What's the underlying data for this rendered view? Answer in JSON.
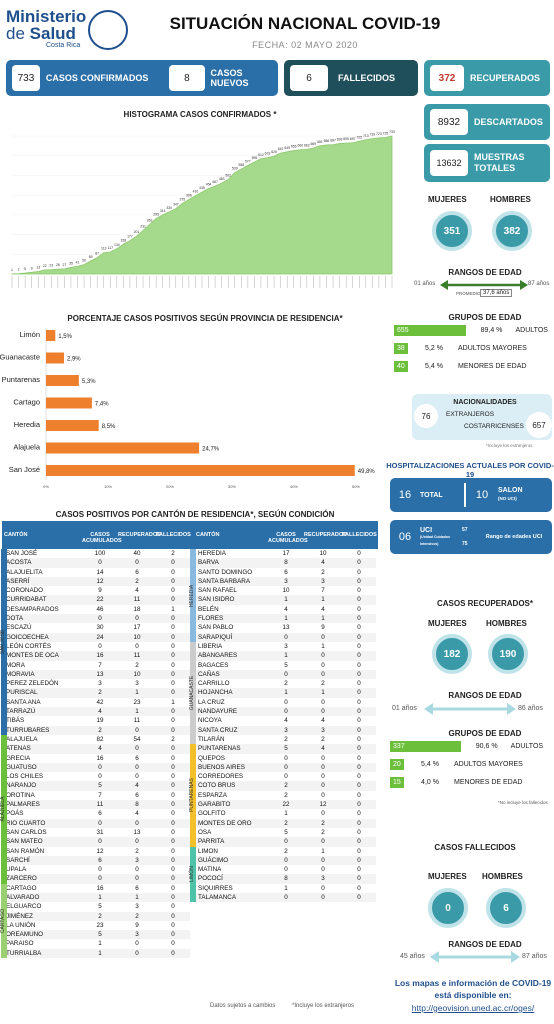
{
  "header": {
    "brand_l1": "Ministerio",
    "brand_de": "de",
    "brand_l2": "Salud",
    "brand_l3": "Costa Rica",
    "title": "SITUACIÓN NACIONAL COVID-19",
    "fecha": "FECHA: 02 MAYO 2020"
  },
  "kpis": {
    "confirmados": {
      "value": "733",
      "label": "CASOS CONFIRMADOS"
    },
    "nuevos": {
      "value": "8",
      "label": "CASOS NUEVOS"
    },
    "fallecidos": {
      "value": "6",
      "label": "FALLECIDOS"
    },
    "recuperados": {
      "value": "372",
      "label": "RECUPERADOS"
    },
    "descartados": {
      "value": "8932",
      "label": "DESCARTADOS"
    },
    "muestras": {
      "value": "13632",
      "label1": "MUESTRAS",
      "label2": "TOTALES"
    }
  },
  "hist_title": "HISTOGRAMA CASOS CONFIRMADOS *",
  "prov_title": "PORCENTAJE CASOS POSITIVOS SEGÚN PROVINCIA DE RESIDENCIA*",
  "canton_title": "CASOS POSITIVOS POR CANTÓN DE RESIDENCIA*, SEGÚN CONDICIÓN",
  "chart_data": [
    {
      "type": "area",
      "title": "HISTOGRAMA CASOS CONFIRMADOS *",
      "values": [
        1,
        2,
        5,
        9,
        13,
        22,
        23,
        26,
        27,
        35,
        41,
        50,
        69,
        87,
        113,
        117,
        134,
        158,
        177,
        201,
        231,
        263,
        295,
        314,
        330,
        347,
        375,
        396,
        416,
        435,
        454,
        467,
        483,
        502,
        539,
        558,
        577,
        595,
        612,
        618,
        626,
        642,
        649,
        655,
        660,
        662,
        669,
        681,
        686,
        687,
        693,
        695,
        697,
        705,
        713,
        719,
        723,
        725,
        733
      ],
      "labels": [
        1,
        2,
        5,
        9,
        13,
        22,
        23,
        26,
        27,
        35,
        41,
        50,
        69,
        87,
        113,
        117,
        134,
        158,
        177,
        201,
        231,
        263,
        295,
        314,
        330,
        347,
        375,
        396,
        416,
        435,
        454,
        467,
        483,
        502,
        539,
        558,
        577,
        595,
        612,
        618,
        626,
        642,
        649,
        655,
        660,
        662,
        669,
        681,
        686,
        687,
        693,
        695,
        697,
        705,
        713,
        719,
        723,
        725,
        733
      ],
      "ylim": [
        0,
        733
      ]
    },
    {
      "type": "bar",
      "title": "PORCENTAJE CASOS POSITIVOS SEGÚN PROVINCIA DE RESIDENCIA*",
      "categories": [
        "Limón",
        "Guanacaste",
        "Puntarenas",
        "Cartago",
        "Heredia",
        "Alajuela",
        "San José"
      ],
      "values": [
        1.5,
        2.9,
        5.3,
        7.4,
        8.5,
        24.7,
        49.8
      ],
      "value_labels": [
        "1,5%",
        "2,9%",
        "5,3%",
        "7,4%",
        "8,5%",
        "24,7%",
        "49,8%"
      ],
      "ticks": [
        "0%",
        "10%",
        "20%",
        "30%",
        "40%",
        "50%"
      ],
      "xlim": [
        0,
        50
      ]
    }
  ],
  "table": {
    "headers": [
      "CANTÓN",
      "CASOS ACUMULADOS",
      "RECUPERADOS",
      "FALLECIDOS"
    ],
    "left": [
      [
        "SAN JOSÉ",
        "100",
        "40",
        "2"
      ],
      [
        "ACOSTA",
        "0",
        "0",
        "0"
      ],
      [
        "ALAJUELITA",
        "14",
        "6",
        "0"
      ],
      [
        "ASERRÍ",
        "12",
        "2",
        "0"
      ],
      [
        "CORONADO",
        "9",
        "4",
        "0"
      ],
      [
        "CURRIDABAT",
        "22",
        "11",
        "0"
      ],
      [
        "DESAMPARADOS",
        "46",
        "18",
        "1"
      ],
      [
        "DOTA",
        "0",
        "0",
        "0"
      ],
      [
        "ESCAZÚ",
        "30",
        "17",
        "0"
      ],
      [
        "GOICOECHEA",
        "24",
        "10",
        "0"
      ],
      [
        "LEÓN CORTÉS",
        "0",
        "0",
        "0"
      ],
      [
        "MONTES DE OCA",
        "16",
        "11",
        "0"
      ],
      [
        "MORA",
        "7",
        "2",
        "0"
      ],
      [
        "MORAVIA",
        "13",
        "10",
        "0"
      ],
      [
        "PEREZ ZELEDÓN",
        "3",
        "3",
        "0"
      ],
      [
        "PURISCAL",
        "2",
        "1",
        "0"
      ],
      [
        "SANTA ANA",
        "42",
        "23",
        "1"
      ],
      [
        "TARRAZÚ",
        "4",
        "1",
        "0"
      ],
      [
        "TIBÁS",
        "19",
        "11",
        "0"
      ],
      [
        "TURRUBARES",
        "2",
        "0",
        "0"
      ],
      [
        "ALAJUELA",
        "82",
        "54",
        "2"
      ],
      [
        "ATENAS",
        "4",
        "0",
        "0"
      ],
      [
        "GRECIA",
        "16",
        "6",
        "0"
      ],
      [
        "GUATUSO",
        "0",
        "0",
        "0"
      ],
      [
        "LOS CHILES",
        "0",
        "0",
        "0"
      ],
      [
        "NARANJO",
        "5",
        "4",
        "0"
      ],
      [
        "OROTINA",
        "7",
        "6",
        "0"
      ],
      [
        "PALMARES",
        "11",
        "8",
        "0"
      ],
      [
        "POÁS",
        "6",
        "4",
        "0"
      ],
      [
        "RIO CUARTO",
        "0",
        "0",
        "0"
      ],
      [
        "SAN CARLOS",
        "31",
        "13",
        "0"
      ],
      [
        "SAN MATEO",
        "0",
        "0",
        "0"
      ],
      [
        "SAN RAMÓN",
        "12",
        "2",
        "0"
      ],
      [
        "SARCHÍ",
        "6",
        "3",
        "0"
      ],
      [
        "UPALA",
        "0",
        "0",
        "0"
      ],
      [
        "ZARCERO",
        "0",
        "0",
        "0"
      ],
      [
        "CARTAGO",
        "16",
        "6",
        "0"
      ],
      [
        "ALVARADO",
        "1",
        "1",
        "0"
      ],
      [
        "ELGUARCO",
        "5",
        "3",
        "0"
      ],
      [
        "JIMÉNEZ",
        "2",
        "2",
        "0"
      ],
      [
        "LA UNIÓN",
        "23",
        "9",
        "0"
      ],
      [
        "OREAMUNO",
        "5",
        "3",
        "0"
      ],
      [
        "PARAISO",
        "1",
        "0",
        "0"
      ],
      [
        "TURRIALBA",
        "1",
        "0",
        "0"
      ]
    ],
    "right": [
      [
        "HEREDIA",
        "17",
        "10",
        "0"
      ],
      [
        "BARVA",
        "8",
        "4",
        "0"
      ],
      [
        "SANTO DOMINGO",
        "6",
        "2",
        "0"
      ],
      [
        "SANTA BARBARA",
        "3",
        "3",
        "0"
      ],
      [
        "SAN RAFAEL",
        "10",
        "7",
        "0"
      ],
      [
        "SAN ISIDRO",
        "1",
        "1",
        "0"
      ],
      [
        "BELÉN",
        "4",
        "4",
        "0"
      ],
      [
        "FLORES",
        "1",
        "1",
        "0"
      ],
      [
        "SAN PABLO",
        "13",
        "9",
        "0"
      ],
      [
        "SARAPIQUÍ",
        "0",
        "0",
        "0"
      ],
      [
        "LIBERIA",
        "3",
        "1",
        "0"
      ],
      [
        "ABANGARES",
        "1",
        "0",
        "0"
      ],
      [
        "BAGACES",
        "5",
        "0",
        "0"
      ],
      [
        "CAÑAS",
        "0",
        "0",
        "0"
      ],
      [
        "CARRILLO",
        "2",
        "2",
        "0"
      ],
      [
        "HOJANCHA",
        "1",
        "1",
        "0"
      ],
      [
        "LA CRUZ",
        "0",
        "0",
        "0"
      ],
      [
        "NANDAYURE",
        "0",
        "0",
        "0"
      ],
      [
        "NICOYA",
        "4",
        "4",
        "0"
      ],
      [
        "SANTA CRUZ",
        "3",
        "3",
        "0"
      ],
      [
        "TILARÁN",
        "2",
        "2",
        "0"
      ],
      [
        "PUNTARENAS",
        "5",
        "4",
        "0"
      ],
      [
        "QUEPOS",
        "0",
        "0",
        "0"
      ],
      [
        "BUENOS AIRES",
        "0",
        "0",
        "0"
      ],
      [
        "CORREDORES",
        "0",
        "0",
        "0"
      ],
      [
        "COTO BRUS",
        "2",
        "0",
        "0"
      ],
      [
        "ESPARZA",
        "2",
        "0",
        "0"
      ],
      [
        "GARABITO",
        "22",
        "12",
        "0"
      ],
      [
        "GOLFITO",
        "1",
        "0",
        "0"
      ],
      [
        "MONTES DE ORO",
        "2",
        "2",
        "0"
      ],
      [
        "OSA",
        "5",
        "2",
        "0"
      ],
      [
        "PARRITA",
        "0",
        "0",
        "0"
      ],
      [
        "LIMON",
        "2",
        "1",
        "0"
      ],
      [
        "GUÁCIMO",
        "0",
        "0",
        "0"
      ],
      [
        "MATINA",
        "0",
        "0",
        "0"
      ],
      [
        "POCOCÍ",
        "8",
        "3",
        "0"
      ],
      [
        "SIQUIRRES",
        "1",
        "0",
        "0"
      ],
      [
        "TALAMANCA",
        "0",
        "0",
        "0"
      ]
    ],
    "footnote1": "Datos sujetos a cambios",
    "footnote2": "*Incluye los extranjeros"
  },
  "provinces": [
    "SAN JOSÉ",
    "ALAJUELA",
    "CARTAGO",
    "HEREDIA",
    "GUANACASTE",
    "PUNTARENAS",
    "LIMÓN"
  ],
  "side": {
    "mujeres_label": "MUJERES",
    "hombres_label": "HOMBRES",
    "mujeres": "351",
    "hombres": "382",
    "rangos_title": "RANGOS DE EDAD",
    "edad_min": "01 años",
    "edad_max": "87 años",
    "promedio": "PROMEDIO",
    "promedio_val": "37,6 años",
    "grupos_title": "GRUPOS DE EDAD",
    "grupos": [
      {
        "n": "655",
        "pct": "89,4 %",
        "label": "ADULTOS",
        "frac": 0.894
      },
      {
        "n": "38",
        "pct": "5,2 %",
        "label": "ADULTOS MAYORES",
        "frac": 0.052
      },
      {
        "n": "40",
        "pct": "5,4 %",
        "label": "MENORES DE EDAD",
        "frac": 0.054
      }
    ],
    "nac_title": "NACIONALIDADES",
    "extranjeros": "76",
    "ext_label": "EXTRANJEROS",
    "cost_label": "COSTARRICENSES",
    "costarricenses": "657",
    "nac_note": "*Incluye los extranjeros",
    "hosp_title": "HOSPITALIZACIONES ACTUALES POR COVID-19",
    "total": "16",
    "total_label": "TOTAL",
    "salon": "10",
    "salon_label": "SALON",
    "salon_sub": "(NO UCI)",
    "uci": "06",
    "uci_label": "UCI",
    "uci_sub": "(Unidad Cuidados Intensivos)",
    "uci_r1": "57",
    "uci_r2": "75",
    "uci_rango": "Rango de edades UCI",
    "rec_title": "CASOS RECUPERADOS*",
    "rec_m": "182",
    "rec_h": "190",
    "rec_min": "01 años",
    "rec_max": "86 años",
    "rec_grupos": [
      {
        "n": "337",
        "pct": "90,6 %",
        "label": "ADULTOS",
        "frac": 0.906
      },
      {
        "n": "20",
        "pct": "5,4 %",
        "label": "ADULTOS MAYORES",
        "frac": 0.054
      },
      {
        "n": "15",
        "pct": "4,0 %",
        "label": "MENORES DE EDAD",
        "frac": 0.04
      }
    ],
    "rec_note": "*No incluye los fallecidos",
    "fal_title": "CASOS FALLECIDOS",
    "fal_m": "0",
    "fal_h": "6",
    "fal_min": "45 años",
    "fal_max": "87 años",
    "link1": "Los mapas e información de COVID-19",
    "link2": "está disponible en:",
    "link3": "http://geovision.uned.ac.cr/oges/"
  },
  "colors": {
    "blue": "#2a6fa8",
    "teal": "#3a9aa8",
    "green": "#6bbf3a",
    "orange": "#ee7f2d"
  }
}
